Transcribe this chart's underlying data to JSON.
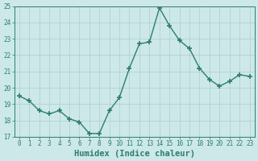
{
  "x": [
    0,
    1,
    2,
    3,
    4,
    5,
    6,
    7,
    8,
    9,
    10,
    11,
    12,
    13,
    14,
    15,
    16,
    17,
    18,
    19,
    20,
    21,
    22,
    23
  ],
  "y": [
    19.5,
    19.2,
    18.6,
    18.4,
    18.6,
    18.1,
    17.9,
    17.2,
    17.2,
    18.6,
    19.4,
    21.2,
    22.7,
    22.8,
    24.9,
    23.8,
    22.9,
    22.4,
    21.2,
    20.5,
    20.1,
    20.4,
    20.8,
    20.7
  ],
  "line_color": "#2e7d6e",
  "marker": "+",
  "marker_size": 4,
  "line_width": 1.0,
  "bg_color": "#cce8e8",
  "grid_color": "#b0cccc",
  "xlabel": "Humidex (Indice chaleur)",
  "ylabel": "",
  "xlim": [
    -0.5,
    23.5
  ],
  "ylim": [
    17,
    25
  ],
  "yticks": [
    17,
    18,
    19,
    20,
    21,
    22,
    23,
    24,
    25
  ],
  "xticks": [
    0,
    1,
    2,
    3,
    4,
    5,
    6,
    7,
    8,
    9,
    10,
    11,
    12,
    13,
    14,
    15,
    16,
    17,
    18,
    19,
    20,
    21,
    22,
    23
  ],
  "tick_fontsize": 5.5,
  "xlabel_fontsize": 7.5
}
